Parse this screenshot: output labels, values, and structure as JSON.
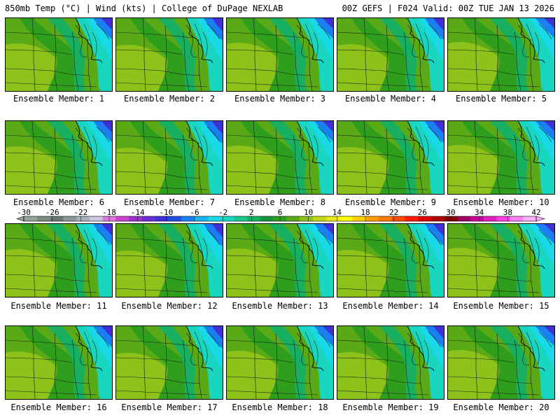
{
  "header": {
    "left": "850mb Temp (°C) | Wind (kts) | College of DuPage NEXLAB",
    "right": "00Z GEFS | F024 Valid: 00Z TUE JAN 13 2026"
  },
  "panels": [
    {
      "label": "Ensemble Member: 1",
      "member": 1
    },
    {
      "label": "Ensemble Member: 2",
      "member": 2
    },
    {
      "label": "Ensemble Member: 3",
      "member": 3
    },
    {
      "label": "Ensemble Member: 4",
      "member": 4
    },
    {
      "label": "Ensemble Member: 5",
      "member": 5
    },
    {
      "label": "Ensemble Member: 6",
      "member": 6
    },
    {
      "label": "Ensemble Member: 7",
      "member": 7
    },
    {
      "label": "Ensemble Member: 8",
      "member": 8
    },
    {
      "label": "Ensemble Member: 9",
      "member": 9
    },
    {
      "label": "Ensemble Member: 10",
      "member": 10
    },
    {
      "label": "Ensemble Member: 11",
      "member": 11
    },
    {
      "label": "Ensemble Member: 12",
      "member": 12
    },
    {
      "label": "Ensemble Member: 13",
      "member": 13
    },
    {
      "label": "Ensemble Member: 14",
      "member": 14
    },
    {
      "label": "Ensemble Member: 15",
      "member": 15
    },
    {
      "label": "Ensemble Member: 16",
      "member": 16
    },
    {
      "label": "Ensemble Member: 17",
      "member": 17
    },
    {
      "label": "Ensemble Member: 18",
      "member": 18
    },
    {
      "label": "Ensemble Member: 19",
      "member": 19
    },
    {
      "label": "Ensemble Member: 20",
      "member": 20
    }
  ],
  "colorbar": {
    "tick_labels": [
      "-30",
      "-26",
      "-22",
      "-18",
      "-14",
      "-10",
      "-6",
      "-2",
      "2",
      "6",
      "10",
      "14",
      "18",
      "22",
      "26",
      "30",
      "34",
      "38",
      "42"
    ],
    "colors": [
      "#9aa39a",
      "#7f8a80",
      "#6c766d",
      "#8e9599",
      "#a9b0b8",
      "#c8c8e0",
      "#dd77dd",
      "#cc44cc",
      "#9b30d0",
      "#6a2ed8",
      "#4030d8",
      "#2050e0",
      "#1a7ff0",
      "#1ab4f0",
      "#19d8e8",
      "#19d6c0",
      "#19c88c",
      "#18b060",
      "#16943c",
      "#2e9e1c",
      "#5aaa18",
      "#8cc21a",
      "#c2d61a",
      "#e8e81a",
      "#ffff00",
      "#ffd000",
      "#ffa000",
      "#ff7800",
      "#ff4a00",
      "#ff1a00",
      "#e00000",
      "#b00000",
      "#800000",
      "#a00060",
      "#cc0099",
      "#e020c0",
      "#ff40e0",
      "#ff80f0",
      "#ffb0ff"
    ]
  },
  "palette": {
    "yellow": "#c2d61a",
    "light_green": "#8cc21a",
    "green": "#5aaa18",
    "dark_green": "#2e9e1c",
    "teal": "#18b060",
    "cyan": "#19d6c0",
    "light_cyan": "#19d8e8",
    "blue": "#1a7ff0",
    "dark_blue": "#4030d8",
    "purple": "#6a2ed8"
  }
}
